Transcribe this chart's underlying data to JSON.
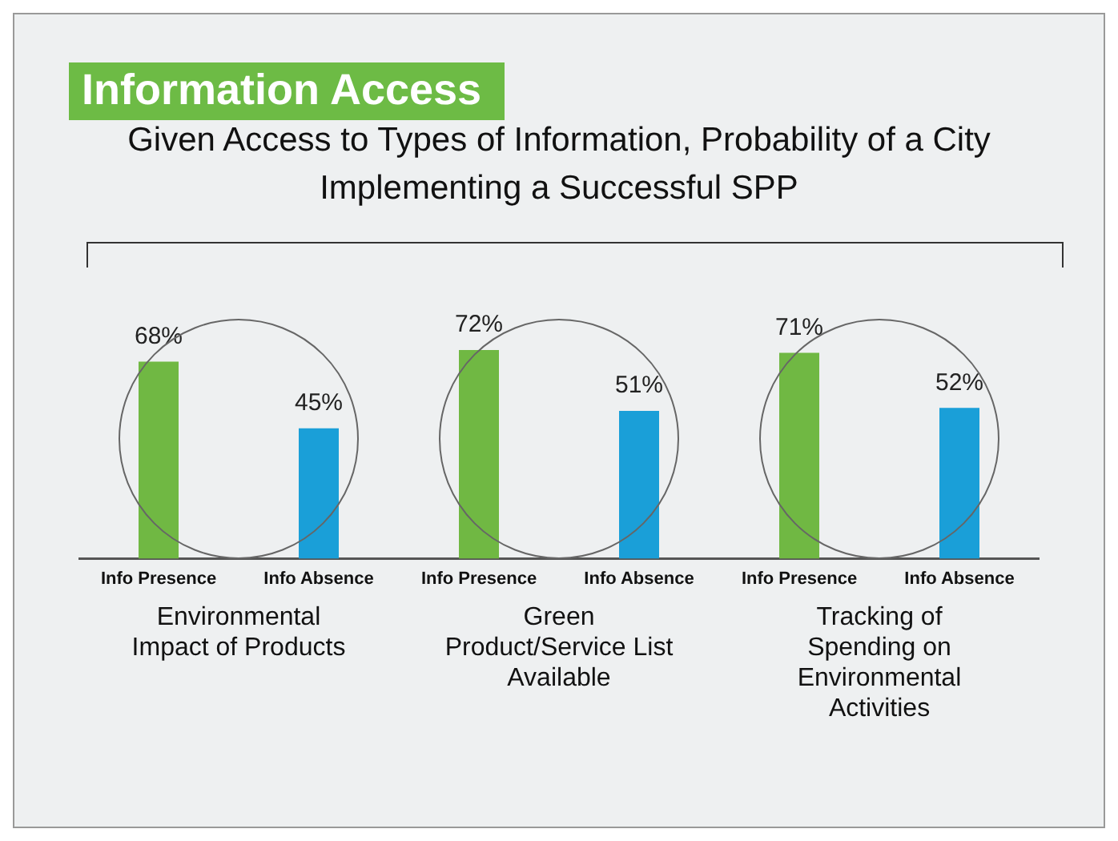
{
  "chart_data": {
    "type": "bar",
    "title": "Information Access",
    "subtitle": "Given Access to Types of Information, Probability of a City Implementing a Successful SPP",
    "categories": [
      "Info Presence",
      "Info Absence",
      "Info Presence",
      "Info Absence",
      "Info Presence",
      "Info Absence"
    ],
    "values": [
      68,
      45,
      72,
      51,
      71,
      52
    ],
    "colors": [
      "#70b843",
      "#1a9fd8",
      "#70b843",
      "#1a9fd8",
      "#70b843",
      "#1a9fd8"
    ],
    "value_labels": [
      "68%",
      "45%",
      "72%",
      "51%",
      "71%",
      "52%"
    ],
    "annotations": [
      "Environmental Impact of Products",
      "Green Product/Service List Available",
      "Tracking of Spending on Environmental Activities"
    ],
    "grid": false,
    "legend": false
  }
}
